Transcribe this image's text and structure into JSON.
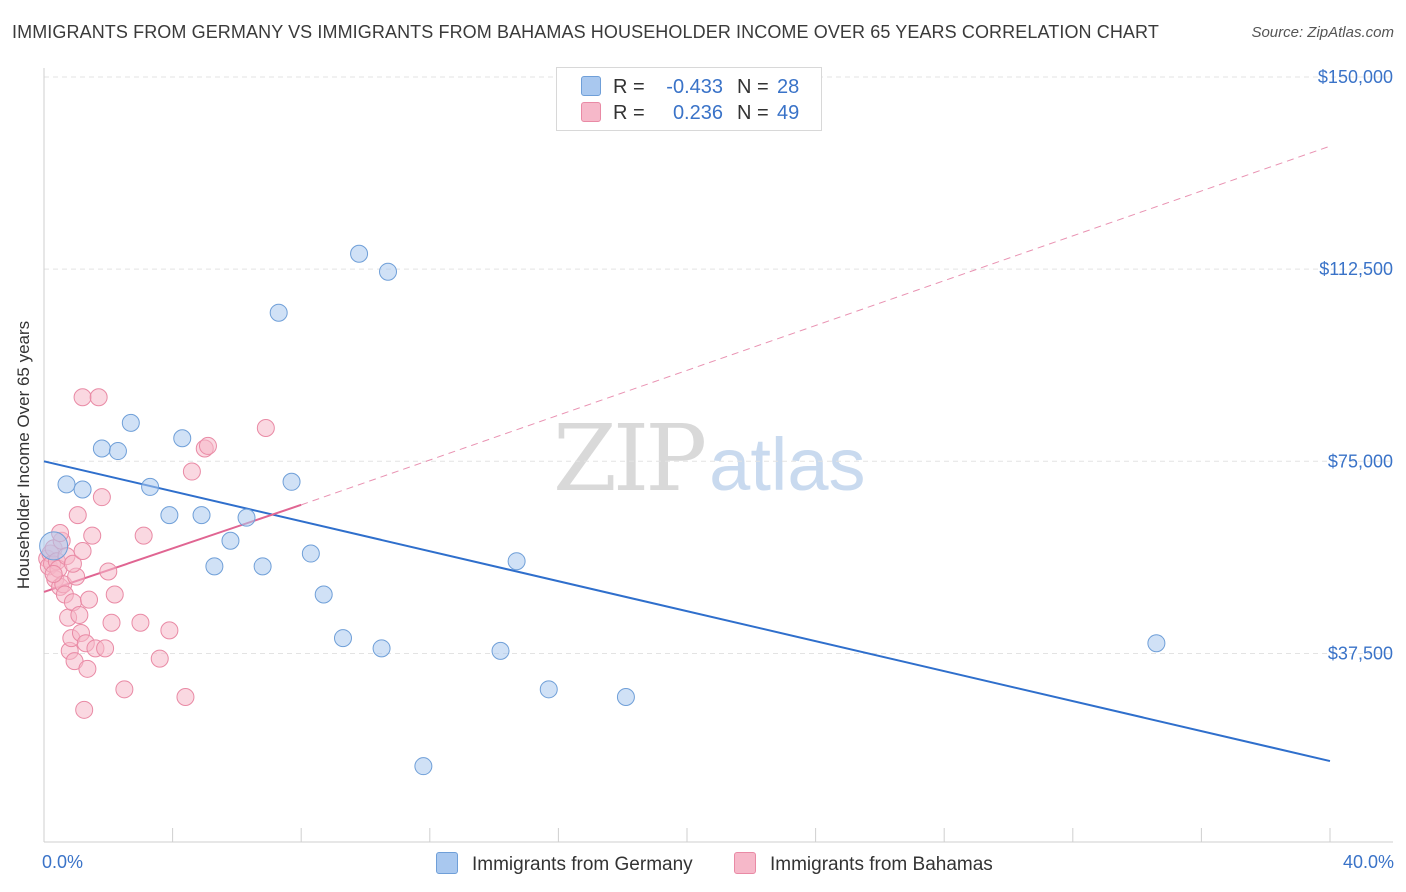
{
  "header": {
    "title": "IMMIGRANTS FROM GERMANY VS IMMIGRANTS FROM BAHAMAS HOUSEHOLDER INCOME OVER 65 YEARS CORRELATION CHART",
    "source": "Source: ZipAtlas.com"
  },
  "watermark": {
    "zip": "ZIP",
    "atlas": "atlas"
  },
  "colors": {
    "germany_fill": "#a9c8ef",
    "germany_stroke": "#6f9fd8",
    "germany_line": "#2f6fcc",
    "bahamas_fill": "#f6b8c9",
    "bahamas_stroke": "#e98aa5",
    "bahamas_line": "#e06592",
    "axis_label": "#3a73c8",
    "grid": "#e3e3e3"
  },
  "legend_top": {
    "germany": {
      "r_label": "R =",
      "r_value": "-0.433",
      "n_label": "N =",
      "n_value": "28"
    },
    "bahamas": {
      "r_label": "R =",
      "r_value": "0.236",
      "n_label": "N =",
      "n_value": "49"
    }
  },
  "legend_bottom": {
    "germany": "Immigrants from Germany",
    "bahamas": "Immigrants from Bahamas"
  },
  "chart_data": {
    "type": "scatter",
    "title": "IMMIGRANTS FROM GERMANY VS IMMIGRANTS FROM BAHAMAS HOUSEHOLDER INCOME OVER 65 YEARS CORRELATION CHART",
    "xlabel": "",
    "ylabel": "Householder Income Over 65 years",
    "xlim": [
      0,
      40
    ],
    "ylim": [
      0,
      155000
    ],
    "x_tick_labels": {
      "min": "0.0%",
      "max": "40.0%"
    },
    "y_ticks": [
      37500,
      75000,
      112500,
      150000
    ],
    "y_tick_labels": [
      "$37,500",
      "$75,000",
      "$112,500",
      "$150,000"
    ],
    "grid": true,
    "series": [
      {
        "name": "Immigrants from Germany",
        "R": -0.433,
        "N": 28,
        "points": [
          [
            0.3,
            58500
          ],
          [
            0.7,
            70500
          ],
          [
            1.2,
            69500
          ],
          [
            1.8,
            77500
          ],
          [
            2.3,
            77000
          ],
          [
            2.7,
            82500
          ],
          [
            3.3,
            70000
          ],
          [
            3.9,
            64500
          ],
          [
            4.3,
            79500
          ],
          [
            4.9,
            64500
          ],
          [
            5.3,
            54500
          ],
          [
            5.8,
            59500
          ],
          [
            6.3,
            64000
          ],
          [
            6.8,
            54500
          ],
          [
            7.3,
            104000
          ],
          [
            7.7,
            71000
          ],
          [
            8.3,
            57000
          ],
          [
            8.7,
            49000
          ],
          [
            9.3,
            40500
          ],
          [
            9.8,
            115500
          ],
          [
            10.7,
            112000
          ],
          [
            10.5,
            38500
          ],
          [
            11.8,
            15500
          ],
          [
            14.2,
            38000
          ],
          [
            14.7,
            55500
          ],
          [
            15.7,
            30500
          ],
          [
            18.1,
            29000
          ],
          [
            34.6,
            39500
          ]
        ],
        "trend": {
          "x": [
            0,
            40
          ],
          "y": [
            75000,
            16500
          ],
          "style": "solid"
        }
      },
      {
        "name": "Immigrants from Bahamas",
        "R": 0.236,
        "N": 49,
        "points": [
          [
            0.1,
            56000
          ],
          [
            0.15,
            54500
          ],
          [
            0.2,
            57000
          ],
          [
            0.25,
            55000
          ],
          [
            0.3,
            58000
          ],
          [
            0.35,
            52000
          ],
          [
            0.4,
            55500
          ],
          [
            0.45,
            54000
          ],
          [
            0.5,
            50500
          ],
          [
            0.55,
            59500
          ],
          [
            0.6,
            51000
          ],
          [
            0.65,
            49000
          ],
          [
            0.7,
            56500
          ],
          [
            0.75,
            44500
          ],
          [
            0.8,
            38000
          ],
          [
            0.85,
            40500
          ],
          [
            0.9,
            47500
          ],
          [
            0.95,
            36000
          ],
          [
            1.0,
            52500
          ],
          [
            1.05,
            64500
          ],
          [
            1.1,
            45000
          ],
          [
            1.15,
            41500
          ],
          [
            1.2,
            87500
          ],
          [
            1.25,
            26500
          ],
          [
            1.3,
            39500
          ],
          [
            1.35,
            34500
          ],
          [
            1.4,
            48000
          ],
          [
            1.5,
            60500
          ],
          [
            1.6,
            38500
          ],
          [
            1.7,
            87500
          ],
          [
            1.8,
            68000
          ],
          [
            1.9,
            38500
          ],
          [
            2.0,
            53500
          ],
          [
            2.1,
            43500
          ],
          [
            2.2,
            49000
          ],
          [
            2.5,
            30500
          ],
          [
            3.0,
            43500
          ],
          [
            3.1,
            60500
          ],
          [
            3.6,
            36500
          ],
          [
            3.9,
            42000
          ],
          [
            4.4,
            29000
          ],
          [
            4.6,
            73000
          ],
          [
            5.0,
            77500
          ],
          [
            5.1,
            78000
          ],
          [
            6.9,
            81500
          ],
          [
            0.3,
            53000
          ],
          [
            0.5,
            61000
          ],
          [
            0.9,
            55000
          ],
          [
            1.2,
            57500
          ]
        ],
        "trend": {
          "x": [
            0,
            8
          ],
          "y": [
            49500,
            66500
          ],
          "style": "solid"
        },
        "trend_extension": {
          "x": [
            8,
            40
          ],
          "y": [
            66500,
            136500
          ],
          "style": "dashed"
        }
      }
    ]
  }
}
